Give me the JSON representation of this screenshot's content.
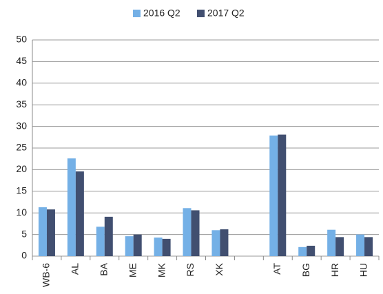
{
  "chart_data": {
    "type": "bar",
    "categories": [
      "WB-6",
      "AL",
      "BA",
      "ME",
      "MK",
      "RS",
      "XK",
      null,
      "AT",
      "BG",
      "HR",
      "HU"
    ],
    "series": [
      {
        "name": "2016 Q2",
        "color": "#74b0e6",
        "values": [
          11.3,
          22.6,
          6.8,
          4.6,
          4.3,
          11.1,
          6.0,
          null,
          27.9,
          2.1,
          6.1,
          5.0
        ]
      },
      {
        "name": "2017 Q2",
        "color": "#414f70",
        "values": [
          10.8,
          19.6,
          9.1,
          5.0,
          4.0,
          10.6,
          6.2,
          null,
          28.1,
          2.4,
          4.4,
          4.4
        ]
      }
    ],
    "ylim": [
      0,
      50
    ],
    "yticks": [
      0,
      5,
      10,
      15,
      20,
      25,
      30,
      35,
      40,
      45,
      50
    ],
    "grid": true,
    "legend": "top"
  }
}
